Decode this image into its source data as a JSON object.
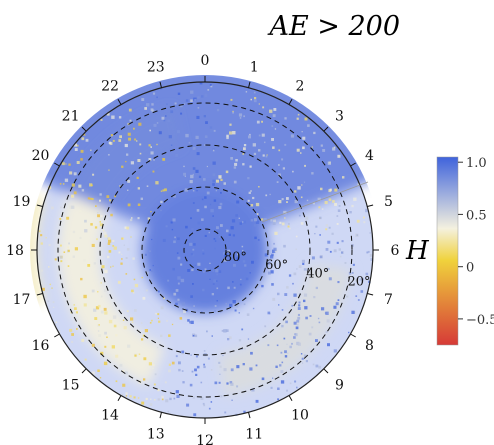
{
  "chart_data": {
    "type": "heatmap",
    "projection": "polar",
    "title": "AE > 200",
    "mlt_labels": [
      "0",
      "1",
      "2",
      "3",
      "4",
      "5",
      "6",
      "7",
      "8",
      "9",
      "10",
      "11",
      "12",
      "13",
      "14",
      "15",
      "16",
      "17",
      "18",
      "19",
      "20",
      "21",
      "22",
      "23"
    ],
    "latitude_labels": [
      "20°",
      "40°",
      "60°",
      "80°"
    ],
    "colorbar": {
      "label": "H",
      "ticks": [
        "1.0",
        "0.5",
        "0",
        "−0.5"
      ],
      "tick_values": [
        1.0,
        0.5,
        0,
        -0.5
      ],
      "range": [
        -0.75,
        1.05
      ],
      "colors": [
        "#d63a37",
        "#f0d23c",
        "#f4f1df",
        "#3f63dc"
      ]
    },
    "background_color": "#cfd8f5",
    "regions": [
      {
        "type": "ring",
        "value": 0.35,
        "from_lat": 20,
        "to_lat": 40,
        "mlt_from": 13.5,
        "mlt_to": 23.2
      },
      {
        "type": "ring",
        "value": 0.45,
        "from_lat": 20,
        "to_lat": 40,
        "mlt_from": 6.5,
        "mlt_to": 11.5
      },
      {
        "type": "disc",
        "value": 0.95,
        "to_lat": 60
      },
      {
        "type": "sector",
        "value": 0.9,
        "from_lat": 0,
        "to_lat": 60,
        "mlt_from": 19.5,
        "mlt_to": 4.5
      },
      {
        "type": "sector",
        "value": 0.3,
        "from_lat": 0,
        "to_lat": 10,
        "mlt_from": 16.8,
        "mlt_to": 19.2
      }
    ]
  }
}
